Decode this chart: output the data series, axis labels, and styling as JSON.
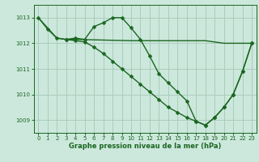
{
  "bg_color": "#cce8dc",
  "grid_color": "#aaccbb",
  "line_color": "#1a6620",
  "xlabel": "Graphe pression niveau de la mer (hPa)",
  "ylim": [
    1008.5,
    1013.5
  ],
  "xlim": [
    -0.5,
    23.5
  ],
  "yticks": [
    1009,
    1010,
    1011,
    1012,
    1013
  ],
  "xticks": [
    0,
    1,
    2,
    3,
    4,
    5,
    6,
    7,
    8,
    9,
    10,
    11,
    12,
    13,
    14,
    15,
    16,
    17,
    18,
    19,
    20,
    21,
    22,
    23
  ],
  "series": [
    {
      "x": [
        0,
        1,
        2,
        3,
        4,
        10,
        11,
        12,
        13,
        14,
        15,
        16,
        17,
        18,
        19,
        20,
        21,
        22,
        23
      ],
      "y": [
        1013.0,
        1012.6,
        1012.2,
        1012.15,
        1012.15,
        1012.1,
        1012.1,
        1012.1,
        1012.1,
        1012.1,
        1012.1,
        1012.1,
        1012.1,
        1012.1,
        1012.05,
        1012.0,
        1012.0,
        1012.0,
        1012.0
      ],
      "color": "#1a6620",
      "marker": null,
      "markersize": 0,
      "linewidth": 1.0
    },
    {
      "x": [
        0,
        1,
        2,
        3,
        4,
        5,
        6,
        7,
        8,
        9,
        10,
        11,
        12,
        13,
        14,
        15,
        16,
        17,
        18,
        19,
        20,
        21,
        22,
        23
      ],
      "y": [
        1013.0,
        1012.55,
        1012.2,
        1012.15,
        1012.2,
        1012.15,
        1012.65,
        1012.8,
        1013.0,
        1013.0,
        1012.6,
        1012.15,
        1011.5,
        1010.8,
        1010.45,
        1010.1,
        1009.75,
        1008.95,
        1008.8,
        1009.1,
        1009.5,
        1010.0,
        1010.9,
        1012.0
      ],
      "color": "#1a6620",
      "marker": "D",
      "markersize": 2.5,
      "linewidth": 1.0
    },
    {
      "x": [
        3,
        4,
        5,
        6,
        7,
        8,
        9,
        10,
        11,
        12,
        13,
        14,
        15,
        16,
        17,
        18,
        19,
        20,
        21,
        22,
        23
      ],
      "y": [
        1012.15,
        1012.1,
        1012.05,
        1011.85,
        1011.6,
        1011.3,
        1011.0,
        1010.7,
        1010.4,
        1010.1,
        1009.8,
        1009.5,
        1009.3,
        1009.1,
        1008.95,
        1008.8,
        1009.1,
        1009.5,
        1010.0,
        1010.9,
        1012.0
      ],
      "color": "#1a6620",
      "marker": "D",
      "markersize": 2.5,
      "linewidth": 1.0
    }
  ],
  "xlabel_fontsize": 6,
  "xlabel_fontweight": "bold",
  "tick_labelsize": 5,
  "tick_color": "#1a6620",
  "spine_color": "#1a6620"
}
